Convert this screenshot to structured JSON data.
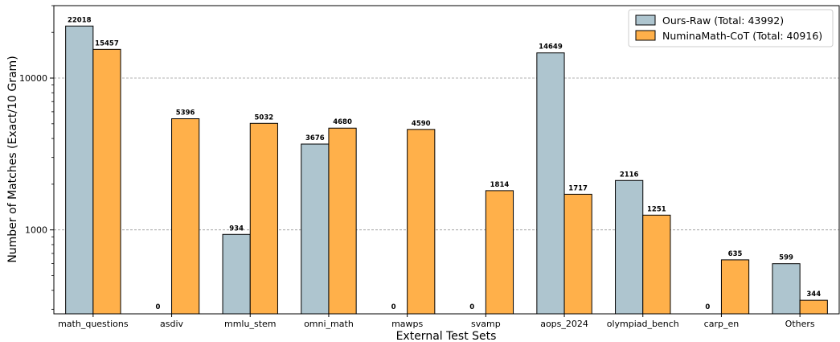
{
  "chart_data": {
    "type": "bar",
    "title": "",
    "xlabel": "External Test Sets",
    "ylabel": "Number of Matches (Exact/10 Gram)",
    "yscale": "log",
    "ylim": [
      280,
      30000
    ],
    "y_tick_labels": [
      "1000",
      "10000"
    ],
    "grid": "horizontal dashed at major ticks",
    "legend_position": "top-right",
    "categories": [
      "math_questions",
      "asdiv",
      "mmlu_stem",
      "omni_math",
      "mawps",
      "svamp",
      "aops_2024",
      "olympiad_bench",
      "carp_en",
      "Others"
    ],
    "series": [
      {
        "name": "Ours-Raw (Total: 43992)",
        "color": "#aec5cf",
        "values": [
          22018,
          0,
          934,
          3676,
          0,
          0,
          14649,
          2116,
          0,
          599
        ]
      },
      {
        "name": "NuminaMath-CoT (Total: 40916)",
        "color": "#ffb04a",
        "values": [
          15457,
          5396,
          5032,
          4680,
          4590,
          1814,
          1717,
          1251,
          635,
          344
        ]
      }
    ]
  }
}
